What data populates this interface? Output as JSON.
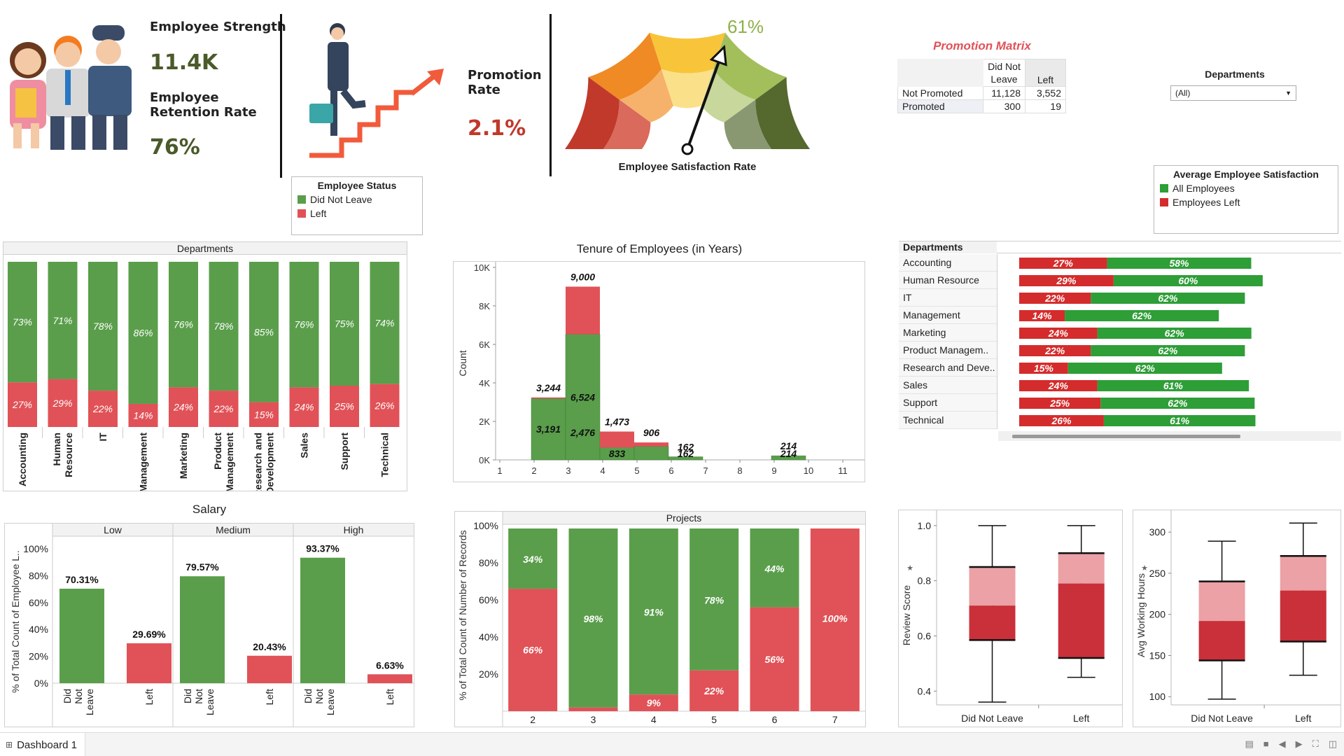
{
  "kpis": {
    "strength_label": "Employee Strength",
    "strength_value": "11.4K",
    "retention_label_1": "Employee",
    "retention_label_2": "Retention Rate",
    "retention_value": "76%",
    "promotion_label_1": "Promotion",
    "promotion_label_2": "Rate",
    "promotion_value": "2.1%"
  },
  "gauge": {
    "value_label": "61%",
    "value": 61,
    "title": "Employee Satisfaction Rate"
  },
  "status_legend": {
    "title": "Employee Status",
    "items": [
      {
        "label": "Did Not Leave",
        "color": "#5a9e4b"
      },
      {
        "label": "Left",
        "color": "#e05257"
      }
    ]
  },
  "promotion_matrix": {
    "title": "Promotion Matrix",
    "col1": "Did Not Leave",
    "col2": "Left",
    "rows": [
      {
        "label": "Not Promoted",
        "v1": "11,128",
        "v2": "3,552"
      },
      {
        "label": "Promoted",
        "v1": "300",
        "v2": "19"
      }
    ]
  },
  "dept_filter": {
    "title": "Departments",
    "value": "(All)"
  },
  "satisfaction_legend": {
    "title": "Average Employee Satisfaction",
    "items": [
      {
        "label": "All Employees",
        "color": "#2e9e37"
      },
      {
        "label": "Employees Left",
        "color": "#d42c2c"
      }
    ]
  },
  "dept_stacked": {
    "header": "Departments",
    "categories": [
      "Accounting",
      "Human Resource",
      "IT",
      "Management",
      "Marketing",
      "Product Management",
      "Research and Development",
      "Sales",
      "Support",
      "Technical"
    ],
    "stayed_pct": [
      73,
      71,
      78,
      86,
      76,
      78,
      85,
      76,
      75,
      74
    ],
    "left_pct": [
      27,
      29,
      22,
      14,
      24,
      22,
      15,
      24,
      25,
      26
    ],
    "stayed_labels": [
      "73%",
      "71%",
      "78%",
      "86%",
      "76%",
      "78%",
      "85%",
      "76%",
      "75%",
      "74%"
    ],
    "left_labels": [
      "27%",
      "29%",
      "22%",
      "14%",
      "24%",
      "22%",
      "15%",
      "24%",
      "25%",
      "26%"
    ]
  },
  "tenure": {
    "title": "Tenure of Employees (in Years)",
    "ylabel": "Count",
    "y_ticks": [
      "0K",
      "2K",
      "4K",
      "6K",
      "8K",
      "10K"
    ],
    "x_ticks": [
      "1",
      "2",
      "3",
      "4",
      "5",
      "6",
      "7",
      "8",
      "9",
      "10",
      "11"
    ],
    "bars": [
      {
        "from": 2,
        "to": 3,
        "total": 3244,
        "stayed": 3191,
        "left": 53,
        "total_label": "3,244",
        "stayed_label": "3,191",
        "left_label": ""
      },
      {
        "from": 3,
        "to": 4,
        "total": 9000,
        "stayed": 6524,
        "left": 2476,
        "total_label": "9,000",
        "stayed_label": "6,524",
        "left_label": "2,476"
      },
      {
        "from": 4,
        "to": 5,
        "total": 1473,
        "stayed": 640,
        "left": 833,
        "total_label": "1,473",
        "stayed_label": "",
        "left_label": "833"
      },
      {
        "from": 5,
        "to": 6,
        "total": 906,
        "stayed": 700,
        "left": 206,
        "total_label": "906",
        "stayed_label": "",
        "left_label": ""
      },
      {
        "from": 6,
        "to": 7,
        "total": 162,
        "stayed": 162,
        "left": 0,
        "total_label": "162",
        "stayed_label": "162",
        "left_label": ""
      },
      {
        "from": 9,
        "to": 10,
        "total": 214,
        "stayed": 214,
        "left": 0,
        "total_label": "214",
        "stayed_label": "214",
        "left_label": ""
      }
    ]
  },
  "dept_satisfaction": {
    "header": "Departments",
    "rows": [
      {
        "label": "Accounting",
        "left": 27,
        "all": 58,
        "left_label": "27%",
        "all_label": "58%"
      },
      {
        "label": "Human Resource",
        "left": 29,
        "all": 60,
        "left_label": "29%",
        "all_label": "60%"
      },
      {
        "label": "IT",
        "left": 22,
        "all": 62,
        "left_label": "22%",
        "all_label": "62%"
      },
      {
        "label": "Management",
        "left": 14,
        "all": 62,
        "left_label": "14%",
        "all_label": "62%"
      },
      {
        "label": "Marketing",
        "left": 24,
        "all": 62,
        "left_label": "24%",
        "all_label": "62%"
      },
      {
        "label": "Product Managem..",
        "left": 22,
        "all": 62,
        "left_label": "22%",
        "all_label": "62%"
      },
      {
        "label": "Research and Deve..",
        "left": 15,
        "all": 62,
        "left_label": "15%",
        "all_label": "62%"
      },
      {
        "label": "Sales",
        "left": 24,
        "all": 61,
        "left_label": "24%",
        "all_label": "61%"
      },
      {
        "label": "Support",
        "left": 25,
        "all": 62,
        "left_label": "25%",
        "all_label": "62%"
      },
      {
        "label": "Technical",
        "left": 26,
        "all": 61,
        "left_label": "26%",
        "all_label": "61%"
      }
    ]
  },
  "salary": {
    "title": "Salary",
    "ylabel": "% of Total Count of Employee L..",
    "y_ticks": [
      "0%",
      "20%",
      "40%",
      "60%",
      "80%",
      "100%"
    ],
    "groups": [
      {
        "name": "Low",
        "stayed": 70.31,
        "left": 29.69,
        "stayed_label": "70.31%",
        "left_label": "29.69%"
      },
      {
        "name": "Medium",
        "stayed": 79.57,
        "left": 20.43,
        "stayed_label": "79.57%",
        "left_label": "20.43%"
      },
      {
        "name": "High",
        "stayed": 93.37,
        "left": 6.63,
        "stayed_label": "93.37%",
        "left_label": "6.63%"
      }
    ],
    "x_stayed": "Did Not Leave",
    "x_left": "Left"
  },
  "projects": {
    "header": "Projects",
    "ylabel": "% of Total Count of Number of Records",
    "y_ticks": [
      "20%",
      "40%",
      "60%",
      "80%",
      "100%"
    ],
    "categories": [
      "2",
      "3",
      "4",
      "5",
      "6",
      "7"
    ],
    "stayed": [
      34,
      98,
      91,
      78,
      44,
      0
    ],
    "left": [
      66,
      2,
      9,
      22,
      56,
      100
    ],
    "stayed_labels": [
      "34%",
      "98%",
      "91%",
      "78%",
      "44%",
      ""
    ],
    "left_labels": [
      "66%",
      "",
      "9%",
      "22%",
      "56%",
      "100%"
    ]
  },
  "review_box": {
    "ylabel": "Review Score",
    "y_ticks": [
      "0.4",
      "0.6",
      "0.8",
      "1.0"
    ],
    "categories": [
      "Did Not Leave",
      "Left"
    ],
    "boxes": [
      {
        "min": 0.36,
        "q1": 0.585,
        "median": 0.71,
        "q3": 0.85,
        "max": 1.0
      },
      {
        "min": 0.45,
        "q1": 0.52,
        "median": 0.79,
        "q3": 0.9,
        "max": 1.0
      }
    ]
  },
  "hours_box": {
    "ylabel": "Avg Working Hours",
    "y_ticks": [
      "100",
      "150",
      "200",
      "250",
      "300"
    ],
    "categories": [
      "Did Not Leave",
      "Left"
    ],
    "boxes": [
      {
        "min": 97,
        "q1": 144,
        "median": 192,
        "q3": 240,
        "max": 289
      },
      {
        "min": 126,
        "q1": 167,
        "median": 229,
        "q3": 271,
        "max": 311
      }
    ]
  },
  "statusbar": {
    "tab_label": "Dashboard 1"
  },
  "colors": {
    "green": "#5a9e4b",
    "red": "#e05257",
    "bright_green": "#2e9e37",
    "bright_red": "#d42c2c"
  }
}
